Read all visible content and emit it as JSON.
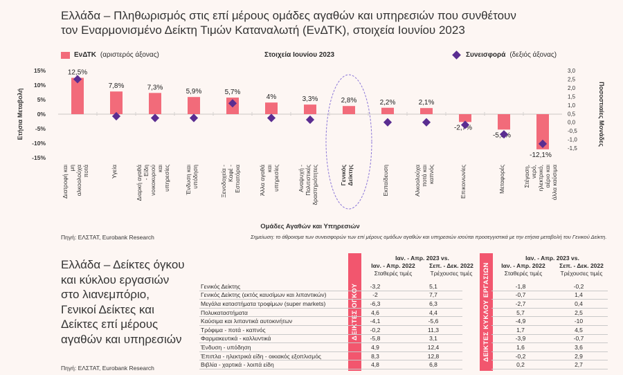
{
  "title": "Ελλάδα – Πληθωρισμός στις επί μέρους ομάδες αγαθών και υπηρεσιών που συνθέτουν τον Εναρμονισμένο Δείκτη Τιμών Καταναλωτή (ΕνΔΤΚ), στοιχεία Ιουνίου 2023",
  "legend": {
    "bar_label": "ΕνΔΤΚ",
    "bar_axis": "(αριστερός άξονας)",
    "center": "Στοιχεία Ιουνίου 2023",
    "dot_label": "Συνεισφορά",
    "dot_axis": "(δεξιός άξονας)"
  },
  "chart_data": {
    "type": "bar",
    "categories": [
      "Διατροφή και μη αλκοολούχα ποτά",
      "Υγεία",
      "Διαρκή αγαθά - Είδη νοικοκυριού και υπηρεσίες",
      "Ένδυση και υπόδηση",
      "Ξενοδοχεία - Καφέ - Εστιατόρια",
      "Άλλα αγαθά και υπηρεσίες",
      "Αναψυχή - Πολιτιστικές δραστηριότητες",
      "Γενικός Δείκτης",
      "Εκπαίδευση",
      "Αλκοολούχα ποτά και καπνός",
      "Επικοινωνίες",
      "Μεταφορές",
      "Στέγαση, νερό, ηλεκτρικό, αέριο και άλλα καύσιμα"
    ],
    "series": [
      {
        "name": "ΕνΔΤΚ",
        "axis": "left",
        "values": [
          12.5,
          7.8,
          7.3,
          5.9,
          5.7,
          4,
          3.3,
          2.8,
          2.2,
          2.1,
          -2.7,
          -5.3,
          -12.1
        ]
      },
      {
        "name": "Συνεισφορά",
        "axis": "right",
        "values": [
          2.5,
          0.35,
          0.25,
          0.25,
          1.1,
          0.25,
          0.15,
          null,
          0.0,
          0.0,
          -0.15,
          -0.7,
          -1.25
        ]
      }
    ],
    "value_labels": [
      "12,5%",
      "7,8%",
      "7,3%",
      "5,9%",
      "5,7%",
      "4%",
      "3,3%",
      "2,8%",
      "2,2%",
      "2,1%",
      "-2,7%",
      "-5,3%",
      "-12,1%"
    ],
    "ylim_left": [
      -15,
      15
    ],
    "left_ticks": [
      "15%",
      "10%",
      "5%",
      "0%",
      "-5%",
      "-10%",
      "-15%"
    ],
    "ylim_right": [
      -1.5,
      3.0
    ],
    "right_ticks": [
      "3,0",
      "2,5",
      "2,0",
      "1,5",
      "1,0",
      "0,5",
      "0,0",
      "-0,5",
      "-1,0",
      "-1,5"
    ],
    "ylabel_left": "Ετήσια Μεταβολή",
    "ylabel_right": "Ποσοστιαίες Μονάδες",
    "xlabel": "Ομάδες Αγαθών και Υπηρεσιών",
    "highlight_category": "Γενικός Δείκτης",
    "bar_color": "#f26b7a",
    "dot_color": "#5a2d91",
    "highlight_color": "#8b76d8"
  },
  "source1": "Πηγή: ΕΛΣΤΑΤ, Eurobank Research",
  "note": "Σημείωση: το άθροισμα των συνεισφορών των επί μέρους ομάδων αγαθών και υπηρεσιών ισούται προσεγγιστικά με την ετήσια μεταβολή του Γενικού Δείκτη.",
  "title2": "Ελλάδα – Δείκτες όγκου και κύκλου εργασιών στο λιανεμπόριο, Γενικοί Δείκτες και Δείκτες επί μέρους αγαθών και υπηρεσιών",
  "source2": "Πηγή: ΕΛΣΤΑΤ, Eurobank Research",
  "table": {
    "band1": "ΔΕΙΚΤΕΣ ΟΓΚΟΥ",
    "band2": "ΔΕΙΚΤΕΣ ΚΥΚΛΟΥ ΕΡΓΑΣΙΩΝ",
    "h_top": "Ιαν. - Απρ. 2023 vs.",
    "h_col1": "Ιαν. - Απρ. 2022",
    "h_col2": "Σεπ. - Δεκ. 2022",
    "h_sub1": "Σταθερές τιμές",
    "h_sub2": "Τρέχουσες τιμές",
    "rows": [
      {
        "name": "Γενικός Δείκτης",
        "a": "-3,2",
        "b": "5,1",
        "c": "-1,8",
        "d": "-0,2"
      },
      {
        "name": "Γενικός Δείκτης (εκτός καυσίμων και λιπαντικών)",
        "a": "-2",
        "b": "7,7",
        "c": "-0,7",
        "d": "1,4"
      },
      {
        "name": "Μεγάλα καταστήματα τροφίμων (super markets)",
        "a": "-6,3",
        "b": "6,3",
        "c": "-2,7",
        "d": "0,4"
      },
      {
        "name": "Πολυκαταστήματα",
        "a": "4,6",
        "b": "4,4",
        "c": "5,7",
        "d": "2,5"
      },
      {
        "name": "Καύσιμα και λιπαντικά αυτοκινήτων",
        "a": "-4,1",
        "b": "-5,6",
        "c": "-4,9",
        "d": "-10"
      },
      {
        "name": "Τρόφιμα - ποτά - καπνός",
        "a": "-0,2",
        "b": "11,3",
        "c": "1,7",
        "d": "4,5"
      },
      {
        "name": "Φαρμακευτικά - καλλυντικά",
        "a": "-5,8",
        "b": "3,1",
        "c": "-3,9",
        "d": "-0,7"
      },
      {
        "name": "Ένδυση - υπόδηση",
        "a": "4,9",
        "b": "12,4",
        "c": "1,6",
        "d": "3,6"
      },
      {
        "name": "Έπιπλα - ηλεκτρικά είδη - οικιακός εξοπλισμός",
        "a": "8,3",
        "b": "12,8",
        "c": "-0,2",
        "d": "2,9"
      },
      {
        "name": "Βιβλία - χαρτικά - λοιπά είδη",
        "a": "4,8",
        "b": "6,8",
        "c": "0,2",
        "d": "2,7"
      }
    ]
  }
}
